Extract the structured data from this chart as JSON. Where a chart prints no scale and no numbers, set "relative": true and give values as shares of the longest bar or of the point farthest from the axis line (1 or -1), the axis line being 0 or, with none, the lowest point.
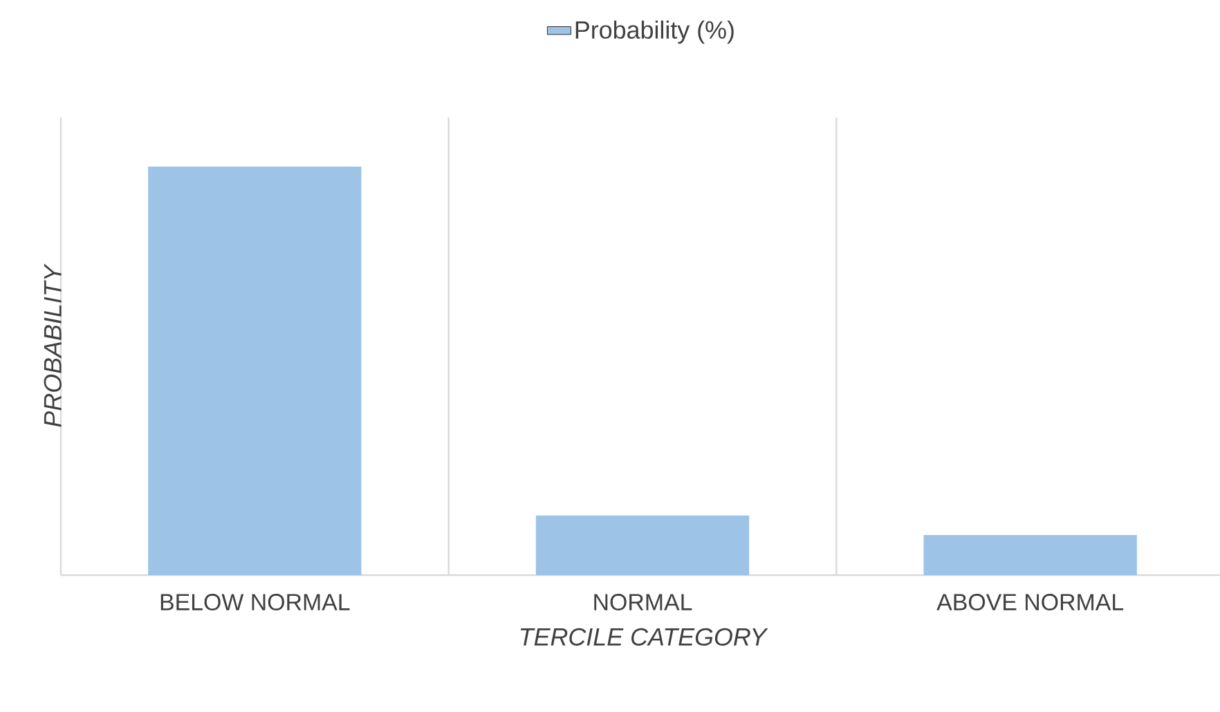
{
  "chart_data": {
    "type": "bar",
    "relative": true,
    "xlabel": "TERCILE CATEGORY",
    "ylabel": "PROBABILITY",
    "categories": [
      "BELOW NORMAL",
      "NORMAL",
      "ABOVE NORMAL"
    ],
    "series": [
      {
        "name": "Probability (%)",
        "color": "#9dc3e6",
        "values": [
          1,
          0.146,
          0.098
        ]
      }
    ],
    "grid": "x",
    "legend": "top"
  }
}
